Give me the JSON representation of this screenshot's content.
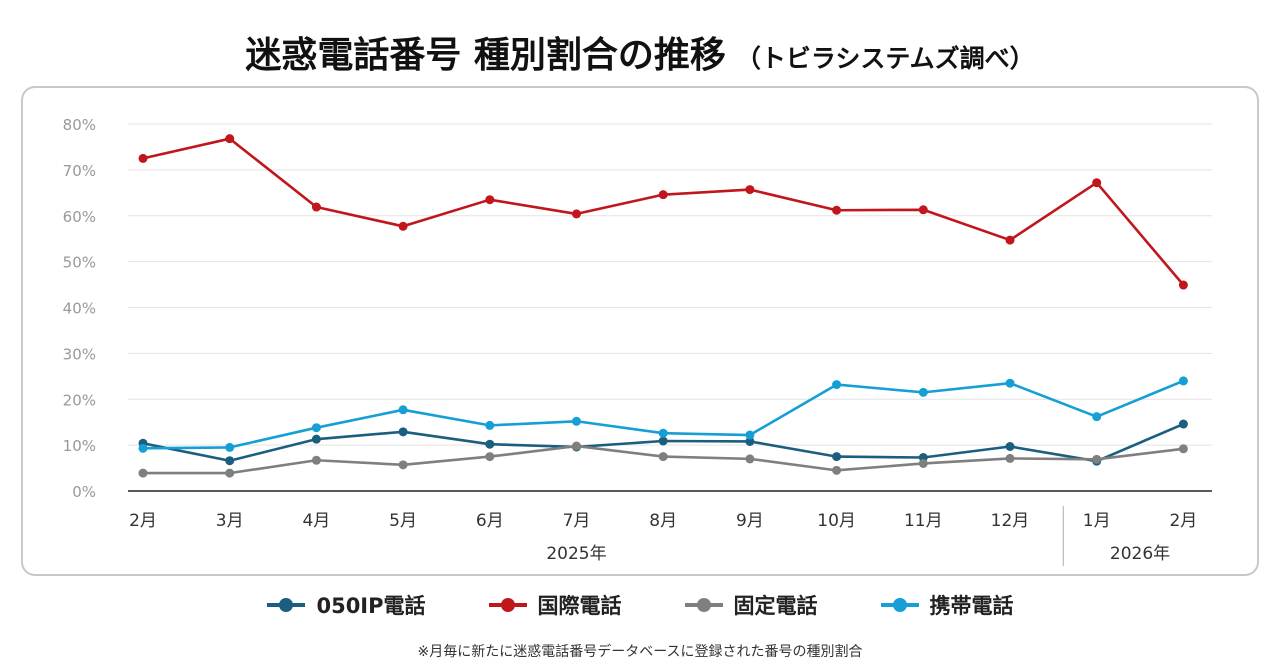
{
  "title": "迷惑電話番号 種別割合の推移",
  "subtitle": "（トビラシステムズ調べ）",
  "footnote": "※月毎に新たに迷惑電話番号データベースに登録された番号の種別割合",
  "chart_data": {
    "type": "line",
    "categories": [
      "2月",
      "3月",
      "4月",
      "5月",
      "6月",
      "7月",
      "8月",
      "9月",
      "10月",
      "11月",
      "12月",
      "1月",
      "2月"
    ],
    "year_groups": [
      {
        "label": "2025年",
        "start": 0,
        "end": 10
      },
      {
        "label": "2026年",
        "start": 11,
        "end": 12
      }
    ],
    "y_ticks": [
      "0%",
      "10%",
      "20%",
      "30%",
      "40%",
      "50%",
      "60%",
      "70%",
      "80%"
    ],
    "ylim": [
      0,
      80
    ],
    "grid": true,
    "legend_position": "bottom",
    "series": [
      {
        "name": "050IP電話",
        "color": "#1b5e80",
        "values": [
          10.4,
          6.6,
          11.3,
          12.9,
          10.2,
          9.6,
          10.9,
          10.8,
          7.5,
          7.3,
          9.7,
          6.5,
          14.6
        ]
      },
      {
        "name": "国際電話",
        "color": "#c0161c",
        "values": [
          72.5,
          76.8,
          61.9,
          57.7,
          63.5,
          60.4,
          64.6,
          65.7,
          61.2,
          61.3,
          54.7,
          67.2,
          44.9
        ]
      },
      {
        "name": "固定電話",
        "color": "#7f7f7f",
        "values": [
          3.9,
          3.9,
          6.7,
          5.7,
          7.5,
          9.8,
          7.5,
          7.0,
          4.5,
          6.0,
          7.1,
          6.9,
          9.2
        ]
      },
      {
        "name": "携帯電話",
        "color": "#169fd4",
        "values": [
          9.3,
          9.5,
          13.8,
          17.7,
          14.3,
          15.2,
          12.6,
          12.2,
          23.2,
          21.5,
          23.5,
          16.2,
          24.0
        ]
      }
    ]
  }
}
